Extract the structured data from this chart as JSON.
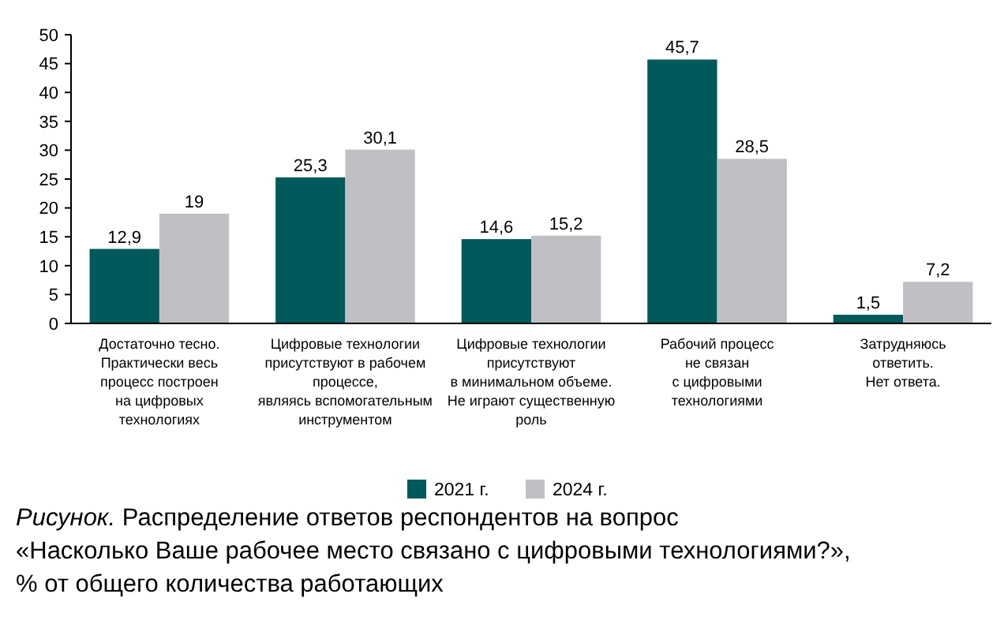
{
  "chart_data": {
    "type": "bar",
    "title": "Рисунок. Распределение ответов респондентов на вопрос\n«Насколько Ваше рабочее место связано с цифровыми технологиями?»,\n% от общего количества работающих",
    "categories": [
      "Достаточно тесно.\nПрактически весь\nпроцесс построен\nна цифровых\nтехнологиях",
      "Цифровые технологии\nприсутствуют в рабочем\nпроцессе,\nявляясь вспомогательным\nинструментом",
      "Цифровые технологии\nприсутствуют\nв минимальном объеме.\nНе играют существенную\nроль",
      "Рабочий процесс\nне связан\nс цифровыми\nтехнологиями",
      "Затрудняюсь\nответить.\nНет ответа."
    ],
    "series": [
      {
        "name": "2021 г.",
        "color": "#005a5b",
        "values": [
          12.9,
          25.3,
          14.6,
          45.7,
          1.5
        ],
        "value_labels": [
          "12,9",
          "25,3",
          "14,6",
          "45,7",
          "1,5"
        ]
      },
      {
        "name": "2024 г.",
        "color": "#c0c0c4",
        "values": [
          19,
          30.1,
          15.2,
          28.5,
          7.2
        ],
        "value_labels": [
          "19",
          "30,1",
          "15,2",
          "28,5",
          "7,2"
        ]
      }
    ],
    "ylim": [
      0,
      50
    ],
    "yticks": [
      0,
      5,
      10,
      15,
      20,
      25,
      30,
      35,
      40,
      45,
      50
    ],
    "grid": false,
    "legend": "bottom"
  }
}
